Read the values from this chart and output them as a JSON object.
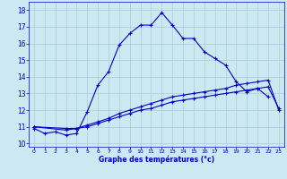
{
  "xlabel": "Graphe des températures (°c)",
  "background_color": "#cce8f0",
  "grid_color": "#aaccdd",
  "line_color": "#0000cc",
  "spine_color": "#0000cc",
  "xlim": [
    -0.5,
    23.5
  ],
  "ylim": [
    9.8,
    18.5
  ],
  "xticks": [
    0,
    1,
    2,
    3,
    4,
    5,
    6,
    7,
    8,
    9,
    10,
    11,
    12,
    13,
    14,
    15,
    16,
    17,
    18,
    19,
    20,
    21,
    22,
    23
  ],
  "yticks": [
    10,
    11,
    12,
    13,
    14,
    15,
    16,
    17,
    18
  ],
  "curve1_x": [
    0,
    1,
    2,
    3,
    4,
    5,
    6,
    7,
    8,
    9,
    10,
    11,
    12,
    13,
    14,
    15,
    16,
    17,
    18,
    19,
    20,
    21,
    22
  ],
  "curve1_y": [
    10.9,
    10.6,
    10.7,
    10.5,
    10.6,
    11.9,
    13.5,
    14.3,
    15.9,
    16.6,
    17.1,
    17.1,
    17.85,
    17.1,
    16.3,
    16.3,
    15.5,
    15.1,
    14.7,
    13.7,
    13.1,
    13.3,
    12.8
  ],
  "curve2_x": [
    0,
    3,
    4,
    5,
    6,
    7,
    8,
    9,
    10,
    11,
    12,
    13,
    14,
    15,
    16,
    17,
    18,
    19,
    20,
    21,
    22,
    23
  ],
  "curve2_y": [
    11.0,
    10.9,
    10.9,
    11.1,
    11.3,
    11.5,
    11.8,
    12.0,
    12.2,
    12.4,
    12.6,
    12.8,
    12.9,
    13.0,
    13.1,
    13.2,
    13.3,
    13.5,
    13.6,
    13.7,
    13.8,
    12.0
  ],
  "curve3_x": [
    0,
    3,
    4,
    5,
    6,
    7,
    8,
    9,
    10,
    11,
    12,
    13,
    14,
    15,
    16,
    17,
    18,
    19,
    20,
    21,
    22,
    23
  ],
  "curve3_y": [
    11.0,
    10.8,
    10.9,
    11.0,
    11.2,
    11.4,
    11.6,
    11.8,
    12.0,
    12.1,
    12.3,
    12.5,
    12.6,
    12.7,
    12.8,
    12.9,
    13.0,
    13.1,
    13.2,
    13.3,
    13.4,
    12.1
  ]
}
